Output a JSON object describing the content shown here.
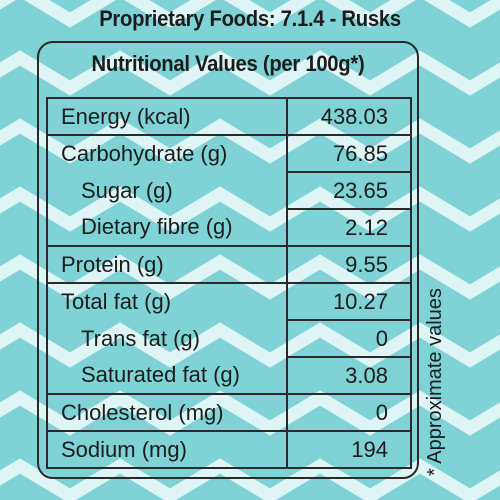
{
  "header": {
    "title": "Proprietary Foods: 7.1.4 - Rusks"
  },
  "table": {
    "title": "Nutritional Values (per 100g*)",
    "rows": [
      {
        "name": "Energy (kcal)",
        "value": "438.03"
      },
      {
        "name": "Carbohydrate (g)",
        "value": "76.85"
      },
      {
        "name": "Sugar (g)",
        "value": "23.65"
      },
      {
        "name": "Dietary fibre (g)",
        "value": "2.12"
      },
      {
        "name": "Protein (g)",
        "value": "9.55"
      },
      {
        "name": "Total fat (g)",
        "value": "10.27"
      },
      {
        "name": "Trans fat (g)",
        "value": "0"
      },
      {
        "name": "Saturated fat (g)",
        "value": "3.08"
      },
      {
        "name": "Cholesterol (mg)",
        "value": "0"
      },
      {
        "name": "Sodium (mg)",
        "value": "194"
      }
    ]
  },
  "footnote": "* Approximate values",
  "colors": {
    "background": "#7fd3d6",
    "chevron": "#ffffff",
    "ink": "#1c1c1c"
  }
}
